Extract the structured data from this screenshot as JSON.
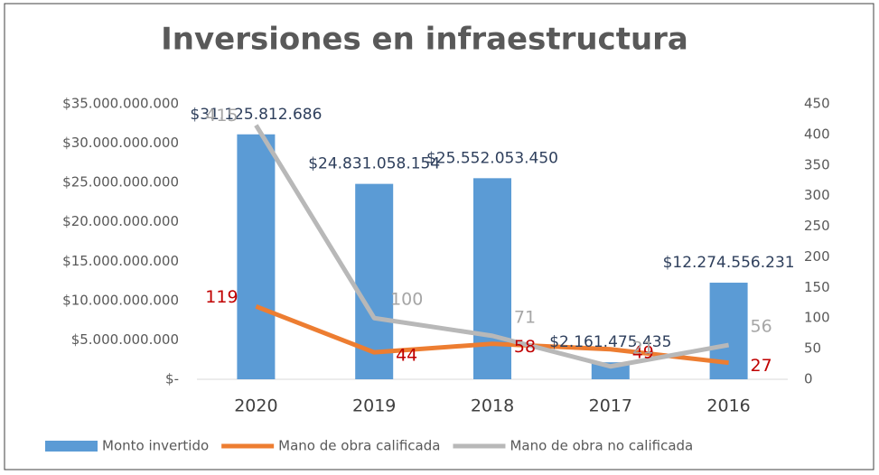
{
  "chart_data": {
    "type": "bar",
    "title": "Inversiones en infraestructura",
    "categories": [
      "2020",
      "2019",
      "2018",
      "2017",
      "2016"
    ],
    "series": [
      {
        "name": "Monto invertido",
        "type": "bar",
        "color": "#5b9bd5",
        "values": [
          31125812686,
          24831058154,
          25552053450,
          2161475435,
          12274556231
        ],
        "value_labels": [
          "$31.125.812.686",
          "$24.831.058.154",
          "$25.552.053.450",
          "$2.161.475.435",
          "$12.274.556.231"
        ],
        "label_color": "#2e3f5c"
      },
      {
        "name": "Mano de obra calificada",
        "type": "line",
        "axis": "y2",
        "color": "#ed7d31",
        "values": [
          119,
          44,
          58,
          49,
          27
        ],
        "label_color": "#c00000"
      },
      {
        "name": "Mano de obra no calificada",
        "type": "line",
        "axis": "y2",
        "color": "#b8b8b8",
        "values": [
          415,
          100,
          71,
          21,
          56
        ],
        "label_color": "#a6a6a6"
      }
    ],
    "ylim": [
      0,
      35000000000
    ],
    "yticks": [
      {
        "value": 0,
        "label": "$-"
      },
      {
        "value": 5000000000,
        "label": "$5.000.000.000"
      },
      {
        "value": 10000000000,
        "label": "$10.000.000.000"
      },
      {
        "value": 15000000000,
        "label": "$15.000.000.000"
      },
      {
        "value": 20000000000,
        "label": "$20.000.000.000"
      },
      {
        "value": 25000000000,
        "label": "$25.000.000.000"
      },
      {
        "value": 30000000000,
        "label": "$30.000.000.000"
      },
      {
        "value": 35000000000,
        "label": "$35.000.000.000"
      }
    ],
    "y2lim": [
      0,
      450
    ],
    "y2ticks": [
      0,
      50,
      100,
      150,
      200,
      250,
      300,
      350,
      400,
      450
    ],
    "legend": "bottom"
  }
}
